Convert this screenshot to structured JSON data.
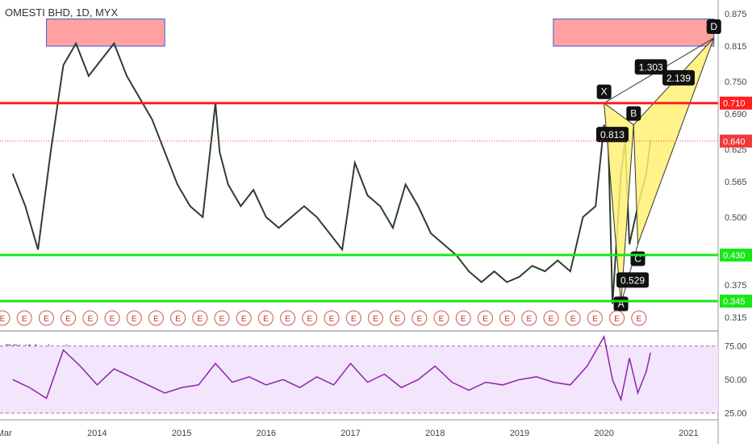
{
  "header": {
    "title": "OMESTI BHD, 1D, MYX",
    "rsi_label": "RSI (14, close)"
  },
  "chart_data": {
    "type": "line",
    "title": "OMESTI BHD, 1D, MYX",
    "x_ticks": [
      "Mar",
      "2014",
      "2015",
      "2016",
      "2017",
      "2018",
      "2019",
      "2020",
      "2021"
    ],
    "price_axis_ticks": [
      0.875,
      0.815,
      0.75,
      0.69,
      0.625,
      0.565,
      0.5,
      0.375,
      0.315
    ],
    "ylim": [
      0.29,
      0.9
    ],
    "price_series": {
      "name": "OMESTI BHD",
      "x": [
        2013.0,
        2013.15,
        2013.3,
        2013.45,
        2013.6,
        2013.75,
        2013.9,
        2014.05,
        2014.2,
        2014.35,
        2014.5,
        2014.65,
        2014.8,
        2014.95,
        2015.1,
        2015.25,
        2015.4,
        2015.45,
        2015.55,
        2015.7,
        2015.85,
        2016.0,
        2016.15,
        2016.3,
        2016.45,
        2016.6,
        2016.75,
        2016.9,
        2017.05,
        2017.2,
        2017.35,
        2017.5,
        2017.65,
        2017.8,
        2017.95,
        2018.1,
        2018.25,
        2018.4,
        2018.55,
        2018.7,
        2018.85,
        2019.0,
        2019.15,
        2019.3,
        2019.45,
        2019.6,
        2019.75,
        2019.9,
        2020.0,
        2020.05,
        2020.1,
        2020.2,
        2020.25,
        2020.3,
        2020.4,
        2020.5,
        2020.55
      ],
      "y": [
        0.58,
        0.52,
        0.44,
        0.62,
        0.78,
        0.82,
        0.76,
        0.79,
        0.82,
        0.76,
        0.72,
        0.68,
        0.62,
        0.56,
        0.52,
        0.5,
        0.71,
        0.62,
        0.56,
        0.52,
        0.55,
        0.5,
        0.48,
        0.5,
        0.52,
        0.5,
        0.47,
        0.44,
        0.6,
        0.54,
        0.52,
        0.48,
        0.56,
        0.52,
        0.47,
        0.45,
        0.43,
        0.4,
        0.38,
        0.4,
        0.38,
        0.39,
        0.41,
        0.4,
        0.42,
        0.4,
        0.5,
        0.52,
        0.67,
        0.64,
        0.34,
        0.58,
        0.64,
        0.45,
        0.52,
        0.58,
        0.64
      ]
    },
    "horizontal_levels": [
      {
        "value": 0.71,
        "color": "#ff1f1f",
        "label": "0.710"
      },
      {
        "value": 0.43,
        "color": "#19e619",
        "label": "0.430"
      },
      {
        "value": 0.345,
        "color": "#19e619",
        "label": "0.345"
      }
    ],
    "last_price": {
      "value": 0.64,
      "label": "0.640",
      "color": "#f03a3a"
    },
    "zones": [
      {
        "x0": 2013.4,
        "x1": 2014.8,
        "y0": 0.815,
        "y1": 0.865,
        "color": "#ff8a8a"
      },
      {
        "x0": 2019.4,
        "x1": 2021.3,
        "y0": 0.815,
        "y1": 0.865,
        "color": "#ff8a8a"
      }
    ],
    "harmonic_pattern": {
      "points": [
        {
          "label": "X",
          "x": 2020.0,
          "y": 0.71
        },
        {
          "label": "A",
          "x": 2020.2,
          "y": 0.34
        },
        {
          "label": "B",
          "x": 2020.35,
          "y": 0.67
        },
        {
          "label": "C",
          "x": 2020.4,
          "y": 0.45
        },
        {
          "label": "D",
          "x": 2021.3,
          "y": 0.83
        }
      ],
      "ratios": [
        {
          "label": "1.303"
        },
        {
          "label": "2.139"
        },
        {
          "label": "0.813"
        },
        {
          "label": "0.529"
        }
      ],
      "fill_color": "#fff176"
    },
    "earnings_markers": {
      "label": "E",
      "count": 30
    },
    "rsi": {
      "name": "RSI (14, close)",
      "ticks": [
        75.0,
        50.0,
        25.0
      ],
      "ylim": [
        20,
        85
      ],
      "band": [
        25,
        75
      ],
      "color": "#8e24aa",
      "x": [
        2013.0,
        2013.2,
        2013.4,
        2013.6,
        2013.8,
        2014.0,
        2014.2,
        2014.4,
        2014.6,
        2014.8,
        2015.0,
        2015.2,
        2015.4,
        2015.6,
        2015.8,
        2016.0,
        2016.2,
        2016.4,
        2016.6,
        2016.8,
        2017.0,
        2017.2,
        2017.4,
        2017.6,
        2017.8,
        2018.0,
        2018.2,
        2018.4,
        2018.6,
        2018.8,
        2019.0,
        2019.2,
        2019.4,
        2019.6,
        2019.8,
        2020.0,
        2020.1,
        2020.2,
        2020.3,
        2020.4,
        2020.5,
        2020.55
      ],
      "y": [
        50,
        44,
        36,
        72,
        60,
        46,
        58,
        52,
        46,
        40,
        44,
        46,
        62,
        48,
        52,
        46,
        50,
        44,
        52,
        46,
        62,
        48,
        54,
        44,
        50,
        60,
        48,
        42,
        48,
        46,
        50,
        52,
        48,
        46,
        60,
        82,
        50,
        35,
        66,
        40,
        56,
        70
      ]
    }
  }
}
